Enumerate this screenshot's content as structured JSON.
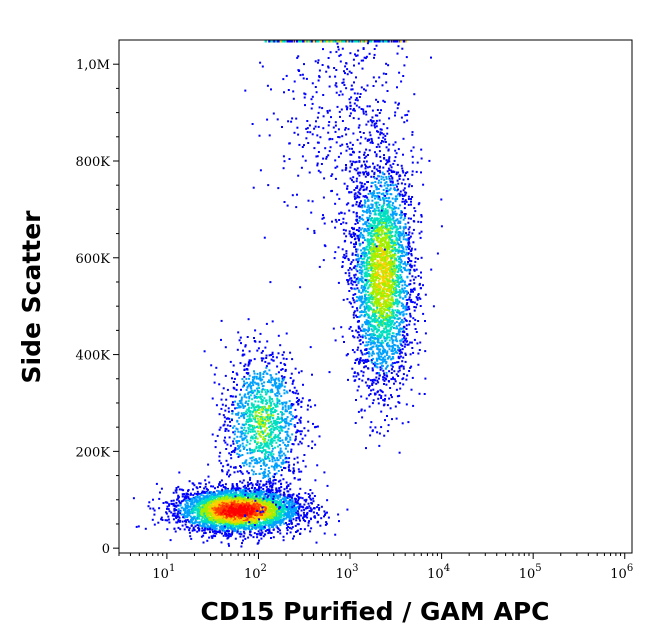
{
  "chart_data": {
    "type": "scatter",
    "title": "",
    "xlabel": "CD15 Purified / GAM APC",
    "ylabel": "Side Scatter",
    "x_scale": "log",
    "xlim": [
      3,
      1200000
    ],
    "ylim": [
      -10000,
      1050000
    ],
    "x_ticks": [
      {
        "value": 10,
        "base": "10",
        "exp": "1"
      },
      {
        "value": 100,
        "base": "10",
        "exp": "2"
      },
      {
        "value": 1000,
        "base": "10",
        "exp": "3"
      },
      {
        "value": 10000,
        "base": "10",
        "exp": "4"
      },
      {
        "value": 100000,
        "base": "10",
        "exp": "5"
      },
      {
        "value": 1000000,
        "base": "10",
        "exp": "6"
      }
    ],
    "y_ticks": [
      {
        "value": 0,
        "label": "0"
      },
      {
        "value": 200000,
        "label": "200K"
      },
      {
        "value": 400000,
        "label": "400K"
      },
      {
        "value": 600000,
        "label": "600K"
      },
      {
        "value": 800000,
        "label": "800K"
      },
      {
        "value": 1000000,
        "label": "1,0M"
      }
    ],
    "grid": false,
    "legend": "none",
    "color_scale": [
      "#0000ff",
      "#00a0ff",
      "#00e0c0",
      "#a0f000",
      "#ffd000",
      "#ff4000",
      "#ff0000"
    ],
    "populations": [
      {
        "name": "",
        "x_center": 60,
        "y_center": 80000,
        "x_spread_decades": 0.33,
        "y_spread": 22000,
        "density": 1.0,
        "count": 4200
      },
      {
        "name": "",
        "x_center": 110,
        "y_center": 260000,
        "x_spread_decades": 0.22,
        "y_spread": 75000,
        "density": 0.45,
        "count": 1300
      },
      {
        "name": "",
        "x_center": 2200,
        "y_center": 570000,
        "x_spread_decades": 0.17,
        "y_spread": 120000,
        "density": 0.6,
        "count": 3200
      },
      {
        "name": "",
        "x_center": 800,
        "y_center": 900000,
        "x_spread_decades": 0.35,
        "y_spread": 130000,
        "density": 0.08,
        "count": 500
      }
    ]
  }
}
